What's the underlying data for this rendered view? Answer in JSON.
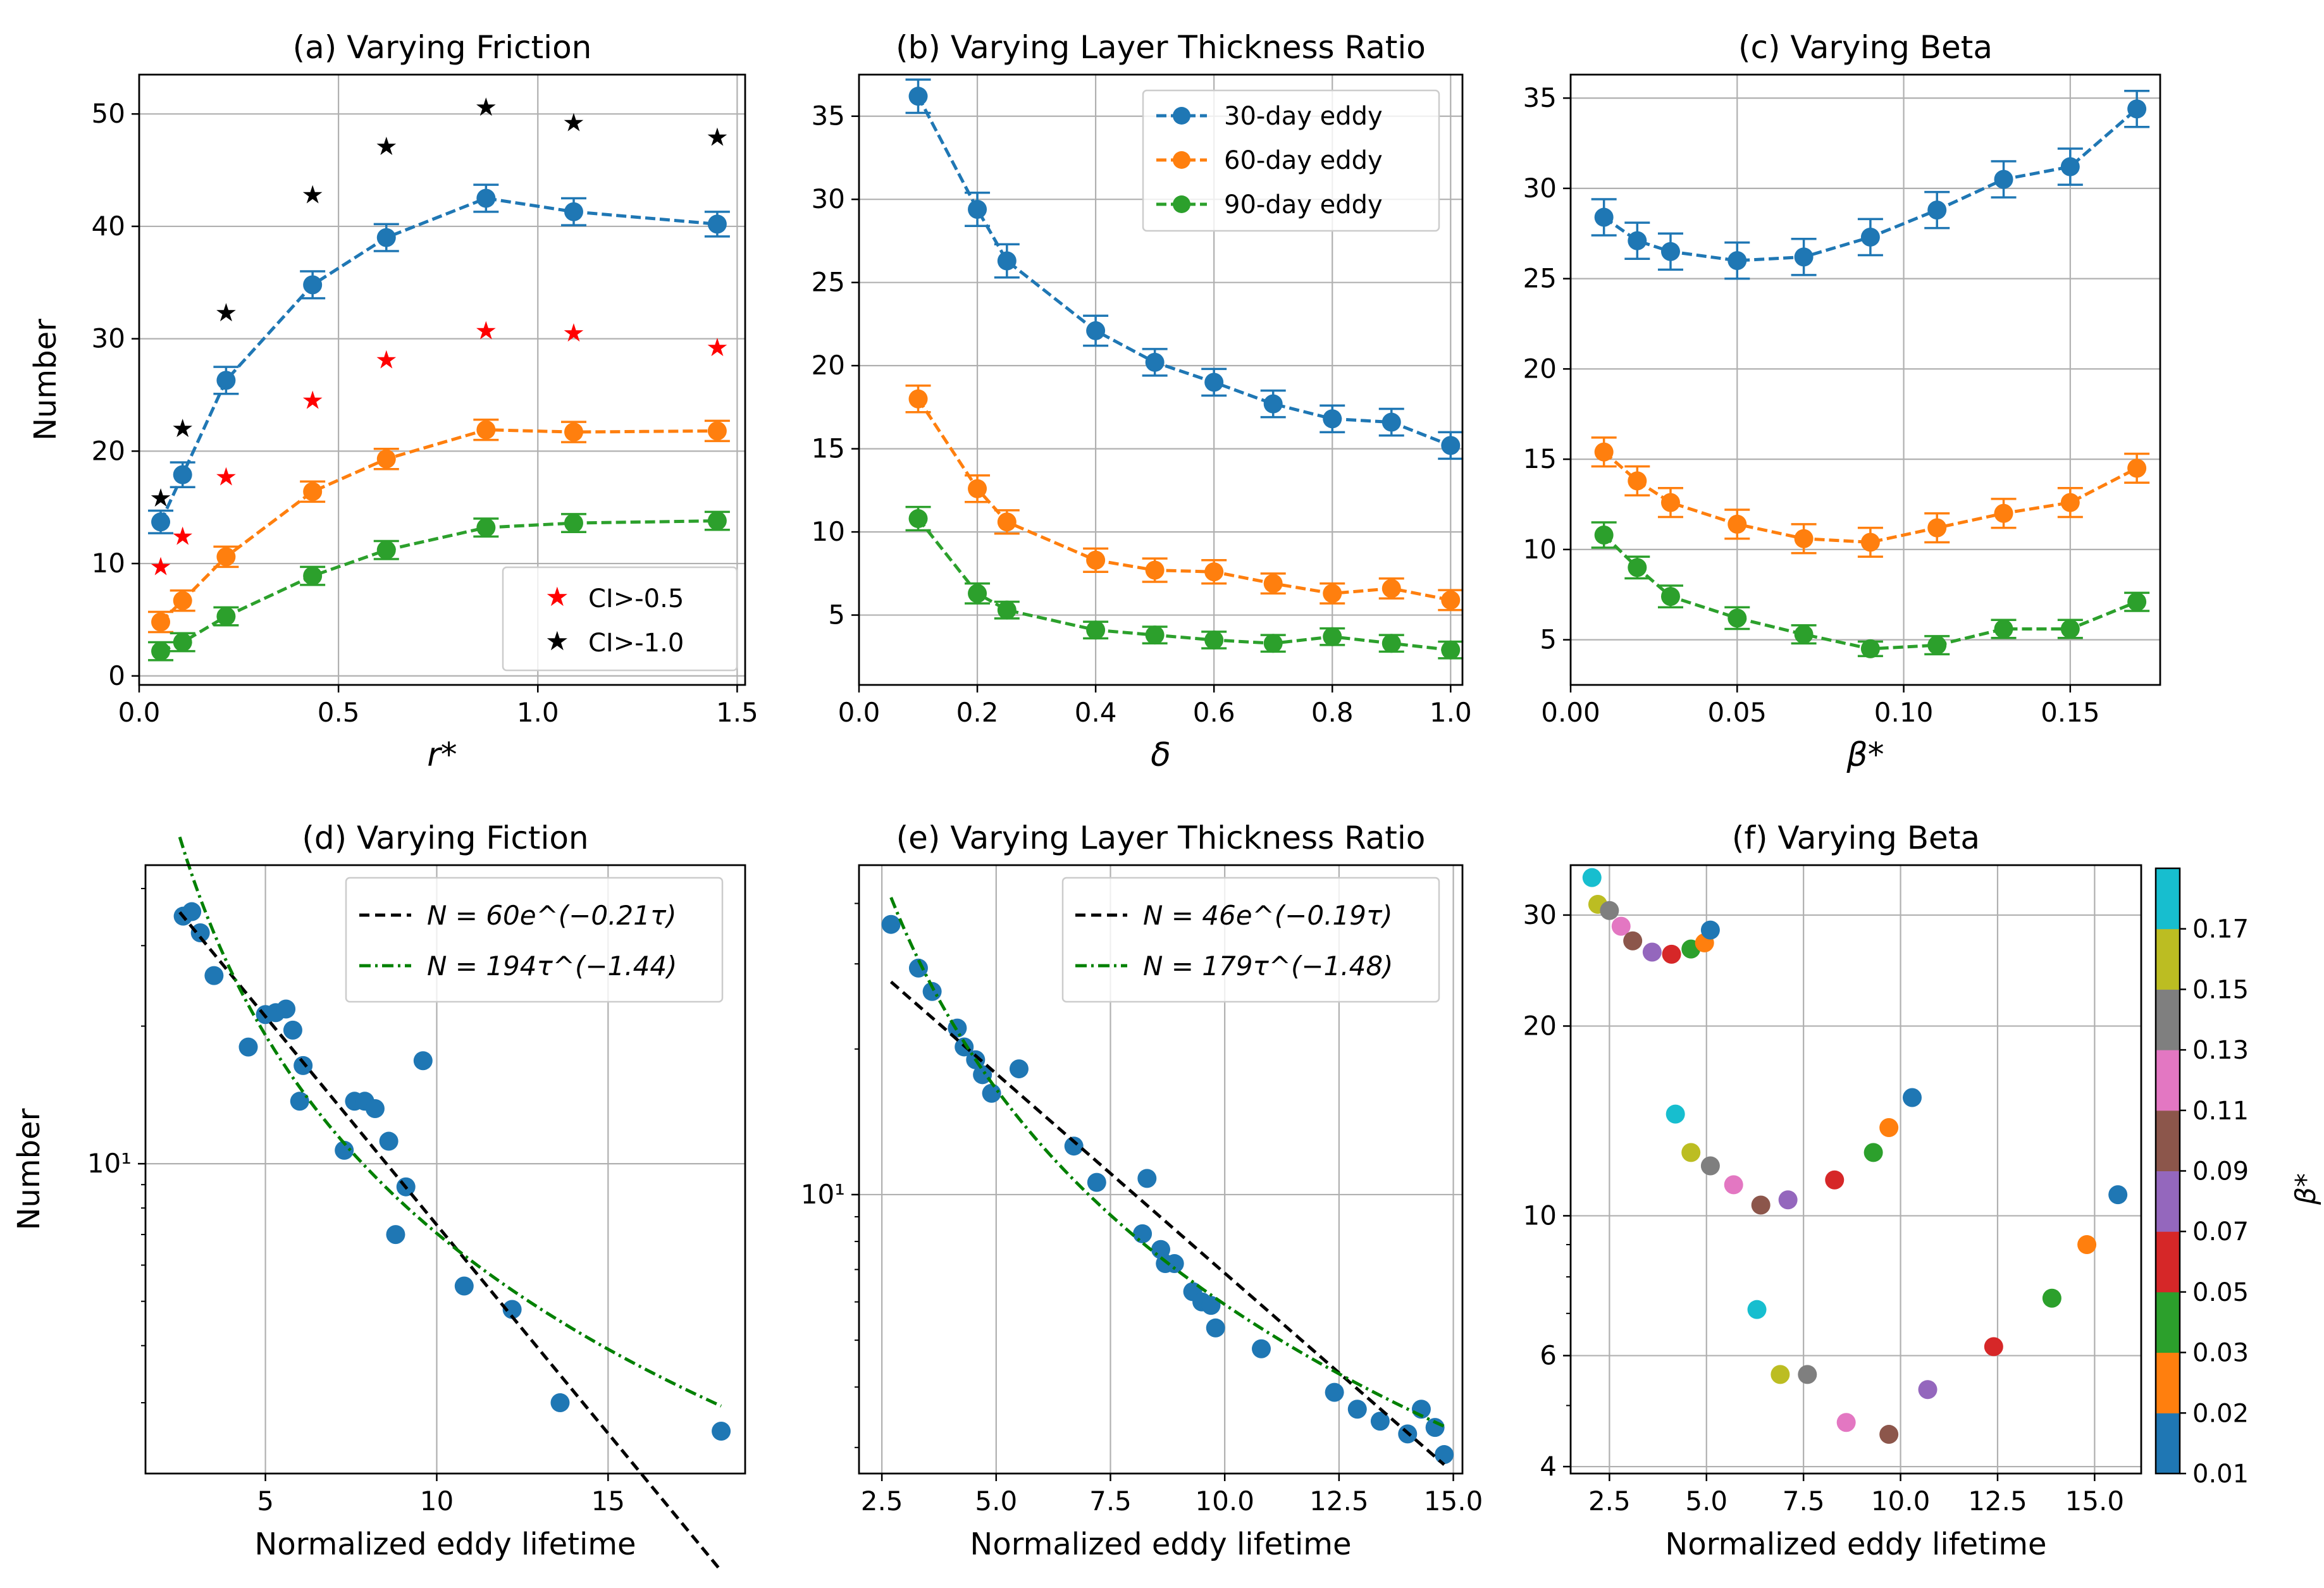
{
  "colors": {
    "c30": "#1f77b4",
    "c60": "#ff7f0e",
    "c90": "#2ca02c",
    "red": "#ff0000",
    "black": "#000000",
    "green_fit": "#008000"
  },
  "colorbar": {
    "label": "β*",
    "ticks": [
      "0.01",
      "0.02",
      "0.03",
      "0.05",
      "0.07",
      "0.09",
      "0.11",
      "0.13",
      "0.15",
      "0.17"
    ],
    "colors": [
      "#1f77b4",
      "#ff7f0e",
      "#2ca02c",
      "#d62728",
      "#9467bd",
      "#8c564b",
      "#e377c2",
      "#7f7f7f",
      "#bcbd22",
      "#17becf"
    ]
  },
  "chart_data": [
    {
      "id": "a",
      "type": "line",
      "title": "(a) Varying Friction",
      "xlabel": "r*",
      "ylabel": "Number",
      "xlim": [
        0,
        1.52
      ],
      "ylim": [
        -0.8,
        53.5
      ],
      "xticks": [
        0,
        0.5,
        1.0,
        1.5
      ],
      "xtick_labels": [
        "0.0",
        "0.5",
        "1.0",
        "1.5"
      ],
      "yticks": [
        0,
        10,
        20,
        30,
        40,
        50
      ],
      "ytick_labels": [
        "0",
        "10",
        "20",
        "30",
        "40",
        "50"
      ],
      "x": [
        0.054,
        0.109,
        0.218,
        0.435,
        0.62,
        0.87,
        1.09,
        1.45
      ],
      "series": [
        {
          "name": "30-day eddy",
          "color": "c30",
          "values": [
            13.7,
            17.9,
            26.3,
            34.8,
            39.0,
            42.5,
            41.3,
            40.2
          ],
          "err": [
            1.0,
            1.1,
            1.2,
            1.2,
            1.2,
            1.2,
            1.2,
            1.1
          ]
        },
        {
          "name": "60-day eddy",
          "color": "c60",
          "values": [
            4.8,
            6.7,
            10.6,
            16.4,
            19.3,
            21.9,
            21.7,
            21.8
          ],
          "err": [
            0.9,
            0.9,
            0.9,
            0.9,
            0.9,
            0.9,
            0.9,
            0.9
          ]
        },
        {
          "name": "90-day eddy",
          "color": "c90",
          "values": [
            2.2,
            3.0,
            5.3,
            8.9,
            11.2,
            13.2,
            13.6,
            13.8
          ],
          "err": [
            0.8,
            0.8,
            0.8,
            0.8,
            0.8,
            0.8,
            0.8,
            0.8
          ]
        }
      ],
      "stars": [
        {
          "name": "CI>-0.5",
          "color": "red",
          "values": [
            9.8,
            12.5,
            17.8,
            24.6,
            28.2,
            30.8,
            30.6,
            29.3
          ]
        },
        {
          "name": "CI>-1.0",
          "color": "black",
          "values": [
            15.9,
            22.1,
            32.4,
            42.9,
            47.2,
            50.7,
            49.3,
            48.0
          ]
        }
      ],
      "legend": {
        "position": "bottom-right",
        "entries": [
          "CI>-0.5",
          "CI>-1.0"
        ]
      }
    },
    {
      "id": "b",
      "type": "line",
      "title": "(b) Varying Layer Thickness Ratio",
      "xlabel": "δ",
      "ylabel": "",
      "xlim": [
        0,
        1.02
      ],
      "ylim": [
        0.8,
        37.5
      ],
      "xticks": [
        0,
        0.2,
        0.4,
        0.6,
        0.8,
        1.0
      ],
      "xtick_labels": [
        "0.0",
        "0.2",
        "0.4",
        "0.6",
        "0.8",
        "1.0"
      ],
      "yticks": [
        5,
        10,
        15,
        20,
        25,
        30,
        35
      ],
      "ytick_labels": [
        "5",
        "10",
        "15",
        "20",
        "25",
        "30",
        "35"
      ],
      "x": [
        0.1,
        0.2,
        0.25,
        0.4,
        0.5,
        0.6,
        0.7,
        0.8,
        0.9,
        1.0
      ],
      "series": [
        {
          "name": "30-day eddy",
          "color": "c30",
          "values": [
            36.2,
            29.4,
            26.3,
            22.1,
            20.2,
            19.0,
            17.7,
            16.8,
            16.6,
            15.2
          ],
          "err": [
            1.0,
            1.0,
            1.0,
            0.9,
            0.8,
            0.8,
            0.8,
            0.8,
            0.8,
            0.8
          ]
        },
        {
          "name": "60-day eddy",
          "color": "c60",
          "values": [
            18.0,
            12.6,
            10.6,
            8.3,
            7.7,
            7.6,
            6.9,
            6.3,
            6.6,
            5.9
          ],
          "err": [
            0.8,
            0.8,
            0.7,
            0.7,
            0.7,
            0.7,
            0.6,
            0.6,
            0.6,
            0.6
          ]
        },
        {
          "name": "90-day eddy",
          "color": "c90",
          "values": [
            10.8,
            6.3,
            5.3,
            4.1,
            3.8,
            3.5,
            3.3,
            3.7,
            3.3,
            2.9
          ],
          "err": [
            0.7,
            0.6,
            0.5,
            0.5,
            0.5,
            0.5,
            0.5,
            0.5,
            0.5,
            0.5
          ]
        }
      ],
      "legend": {
        "position": "top-right",
        "entries": [
          "30-day eddy",
          "60-day eddy",
          "90-day eddy"
        ]
      }
    },
    {
      "id": "c",
      "type": "line",
      "title": "(c) Varying Beta",
      "xlabel": "β*",
      "ylabel": "",
      "xlim": [
        0,
        0.177
      ],
      "ylim": [
        2.5,
        36.3
      ],
      "xticks": [
        0,
        0.05,
        0.1,
        0.15
      ],
      "xtick_labels": [
        "0.00",
        "0.05",
        "0.10",
        "0.15"
      ],
      "yticks": [
        5,
        10,
        15,
        20,
        25,
        30,
        35
      ],
      "ytick_labels": [
        "5",
        "10",
        "15",
        "20",
        "25",
        "30",
        "35"
      ],
      "x": [
        0.01,
        0.02,
        0.03,
        0.05,
        0.07,
        0.09,
        0.11,
        0.13,
        0.15,
        0.17
      ],
      "series": [
        {
          "name": "30-day eddy",
          "color": "c30",
          "values": [
            28.4,
            27.1,
            26.5,
            26.0,
            26.2,
            27.3,
            28.8,
            30.5,
            31.2,
            34.4
          ],
          "err": [
            1.0,
            1.0,
            1.0,
            1.0,
            1.0,
            1.0,
            1.0,
            1.0,
            1.0,
            1.0
          ]
        },
        {
          "name": "60-day eddy",
          "color": "c60",
          "values": [
            15.4,
            13.8,
            12.6,
            11.4,
            10.6,
            10.4,
            11.2,
            12.0,
            12.6,
            14.5
          ],
          "err": [
            0.8,
            0.8,
            0.8,
            0.8,
            0.8,
            0.8,
            0.8,
            0.8,
            0.8,
            0.8
          ]
        },
        {
          "name": "90-day eddy",
          "color": "c90",
          "values": [
            10.8,
            9.0,
            7.4,
            6.2,
            5.3,
            4.5,
            4.7,
            5.6,
            5.6,
            7.1
          ],
          "err": [
            0.7,
            0.6,
            0.6,
            0.6,
            0.5,
            0.4,
            0.5,
            0.5,
            0.5,
            0.5
          ]
        }
      ]
    },
    {
      "id": "d",
      "type": "scatter",
      "title": "(d) Varying Fiction",
      "xlabel": "Normalized eddy lifetime",
      "ylabel": "Number",
      "yscale": "log",
      "xlim": [
        1.5,
        19.0
      ],
      "ylim": [
        2.1,
        45.0
      ],
      "xticks": [
        5,
        10,
        15
      ],
      "xtick_labels": [
        "5",
        "10",
        "15"
      ],
      "yticks_major": [
        10
      ],
      "ytick_labels": [
        "10¹"
      ],
      "points": {
        "x": [
          2.6,
          2.85,
          3.1,
          3.5,
          4.5,
          5.0,
          5.3,
          5.6,
          5.8,
          6.1,
          6.0,
          7.3,
          7.6,
          7.9,
          8.2,
          8.6,
          8.8,
          9.1,
          9.6,
          10.8,
          12.2,
          13.6,
          18.3
        ],
        "y": [
          34.8,
          35.6,
          32.0,
          25.8,
          18.0,
          21.2,
          21.4,
          21.8,
          19.6,
          16.4,
          13.7,
          10.7,
          13.7,
          13.7,
          13.2,
          11.2,
          7.0,
          8.9,
          16.8,
          5.4,
          4.8,
          3.0,
          2.6
        ]
      },
      "fits": [
        {
          "label": "N = 60e^(−0.21τ)",
          "style": "dashed",
          "color": "black",
          "a": 60,
          "b": 0.21,
          "form": "exp",
          "range": [
            2.5,
            18.3
          ]
        },
        {
          "label": "N = 194τ^(−1.44)",
          "style": "dashdot",
          "color": "green_fit",
          "a": 194,
          "b": 1.44,
          "form": "pow",
          "range": [
            2.5,
            18.3
          ]
        }
      ],
      "legend": {
        "position": "top-right",
        "entries": [
          "N = 60e^(−0.21τ)",
          "N = 194τ^(−1.44)"
        ]
      }
    },
    {
      "id": "e",
      "type": "scatter",
      "title": "(e) Varying Layer Thickness Ratio",
      "xlabel": "Normalized eddy lifetime",
      "ylabel": "",
      "yscale": "log",
      "xlim": [
        2.0,
        15.2
      ],
      "ylim": [
        2.65,
        48.0
      ],
      "xticks": [
        2.5,
        5.0,
        7.5,
        10.0,
        12.5,
        15.0
      ],
      "xtick_labels": [
        "2.5",
        "5.0",
        "7.5",
        "10.0",
        "12.5",
        "15.0"
      ],
      "yticks_major": [
        10
      ],
      "ytick_labels": [
        "10¹"
      ],
      "points": {
        "x": [
          2.7,
          3.3,
          3.6,
          4.15,
          4.3,
          4.55,
          4.7,
          4.9,
          5.5,
          6.7,
          7.2,
          8.2,
          8.3,
          8.6,
          8.7,
          8.9,
          9.3,
          9.5,
          9.7,
          9.8,
          10.8,
          12.4,
          12.9,
          13.4,
          14.0,
          14.3,
          14.6,
          14.8
        ],
        "y": [
          36.2,
          29.4,
          26.3,
          22.1,
          20.2,
          19.0,
          17.7,
          16.2,
          18.2,
          12.6,
          10.6,
          8.3,
          10.8,
          7.7,
          7.2,
          7.2,
          6.3,
          6.0,
          5.9,
          5.3,
          4.8,
          3.9,
          3.6,
          3.4,
          3.2,
          3.6,
          3.3,
          2.9
        ]
      },
      "fits": [
        {
          "label": "N = 46e^(−0.19τ)",
          "style": "dashed",
          "color": "black",
          "a": 46,
          "b": 0.19,
          "form": "exp",
          "range": [
            2.7,
            14.8
          ]
        },
        {
          "label": "N = 179τ^(−1.48)",
          "style": "dashdot",
          "color": "green_fit",
          "a": 179,
          "b": 1.48,
          "form": "pow",
          "range": [
            2.7,
            14.8
          ]
        }
      ],
      "legend": {
        "position": "top-right",
        "entries": [
          "N = 46e^(−0.19τ)",
          "N = 179τ^(−1.48)"
        ]
      }
    },
    {
      "id": "f",
      "type": "scatter",
      "title": "(f) Varying Beta",
      "xlabel": "Normalized eddy lifetime",
      "ylabel": "",
      "yscale": "log",
      "xlim": [
        1.5,
        16.2
      ],
      "ylim": [
        3.9,
        36.0
      ],
      "xticks": [
        2.5,
        5.0,
        7.5,
        10.0,
        12.5,
        15.0
      ],
      "xtick_labels": [
        "2.5",
        "5.0",
        "7.5",
        "10.0",
        "12.5",
        "15.0"
      ],
      "yticks_major": [
        4,
        6,
        10,
        20,
        30
      ],
      "ytick_labels": [
        "4",
        "6",
        "10",
        "20",
        "30"
      ],
      "points": {
        "x": [
          2.05,
          2.2,
          2.5,
          2.8,
          3.1,
          3.6,
          4.1,
          4.6,
          4.95,
          5.1,
          4.2,
          4.6,
          5.1,
          5.7,
          6.4,
          7.1,
          8.3,
          9.3,
          9.7,
          10.3,
          6.3,
          6.9,
          7.6,
          8.6,
          9.7,
          10.7,
          12.4,
          13.9,
          14.8,
          15.6
        ],
        "y": [
          34.4,
          31.2,
          30.5,
          28.8,
          27.3,
          26.2,
          26.0,
          26.5,
          27.1,
          28.4,
          14.5,
          12.6,
          12.0,
          11.2,
          10.4,
          10.6,
          11.4,
          12.6,
          13.8,
          15.4,
          7.1,
          5.6,
          5.6,
          4.7,
          4.5,
          5.3,
          6.2,
          7.4,
          9.0,
          10.8
        ],
        "beta_index": [
          9,
          8,
          7,
          6,
          5,
          4,
          3,
          2,
          1,
          0,
          9,
          8,
          7,
          6,
          5,
          4,
          3,
          2,
          1,
          0,
          9,
          8,
          7,
          6,
          5,
          4,
          3,
          2,
          1,
          0
        ]
      }
    }
  ]
}
